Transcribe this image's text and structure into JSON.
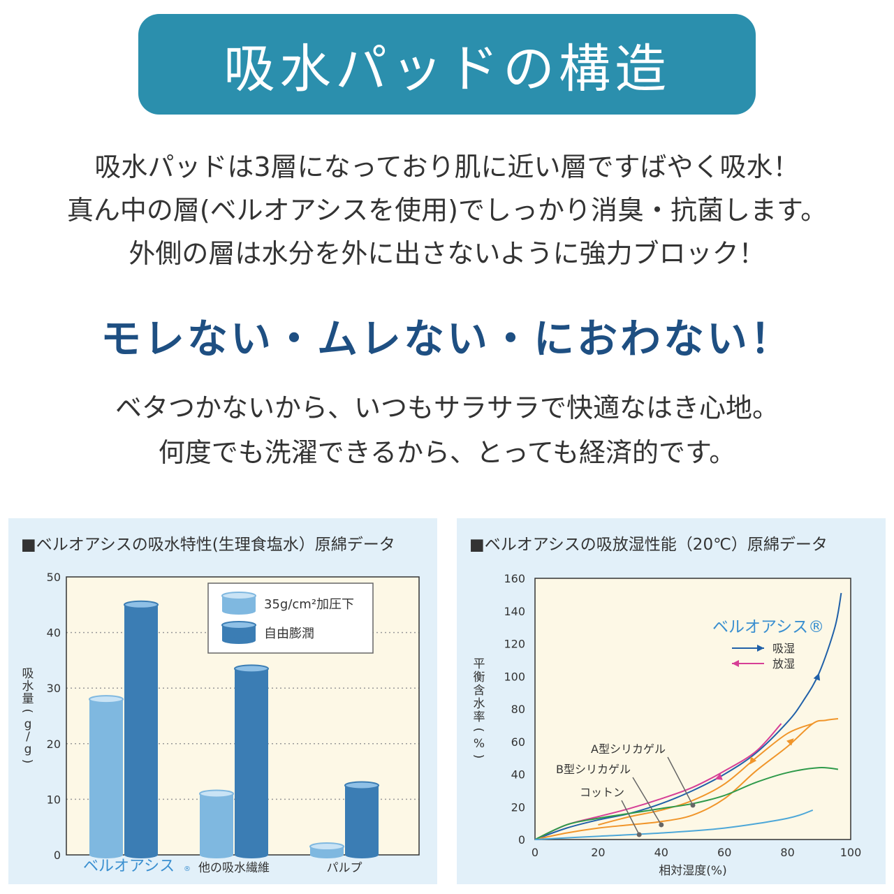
{
  "header": {
    "title": "吸水パッドの構造"
  },
  "intro": {
    "lines": [
      "吸水パッドは3層になっており肌に近い層ですばやく吸水！",
      "真ん中の層(ベルオアシスを使用)でしっかり消臭・抗菌します。",
      "外側の層は水分を外に出さないように強力ブロック！"
    ]
  },
  "slogan": "モレない・ムレない・におわない！",
  "benefit": {
    "lines": [
      "ベタつかないから、いつもサラサラで快適なはき心地。",
      "何度でも洗濯できるから、とっても経済的です。"
    ]
  },
  "colors": {
    "banner": "#2b8fad",
    "slogan": "#1e4f82",
    "panel_bg": "#e2f0f9",
    "plot_bg": "#fdf8e6",
    "bar_light": "#7fb8e0",
    "bar_dark": "#3b7db4",
    "belloasis": "#3a8fd0",
    "absorb": "#2060a8",
    "release": "#d63f96",
    "a_gel": "#f0952a",
    "b_gel": "#2e9a4a",
    "cotton": "#4da7d8"
  },
  "chart_data": [
    {
      "type": "bar",
      "title": "■ベルオアシスの吸水特性(生理食塩水）原綿データ",
      "categories": [
        "ベルオアシス",
        "他の吸水繊維",
        "パルプ"
      ],
      "category_marks": [
        "®",
        "",
        ""
      ],
      "series": [
        {
          "name": "35g/cm²加圧下",
          "values": [
            28,
            11,
            1.5
          ]
        },
        {
          "name": "自由膨潤",
          "values": [
            45,
            33.5,
            12.5
          ]
        }
      ],
      "ylabel": "吸水量(g/g)",
      "ylim": [
        0,
        50
      ],
      "yticks": [
        0,
        10,
        20,
        30,
        40,
        50
      ],
      "grid": true,
      "legend": "top-right"
    },
    {
      "type": "line",
      "title": "■ベルオアシスの吸放湿性能（20℃）原綿データ",
      "xlabel": "相対湿度(%)",
      "ylabel": "平衡含水率(%)",
      "xlim": [
        0,
        100
      ],
      "ylim": [
        0,
        160
      ],
      "xticks": [
        0,
        20,
        40,
        60,
        80,
        100
      ],
      "yticks": [
        0,
        20,
        40,
        60,
        80,
        100,
        120,
        140,
        160
      ],
      "legend_title": "ベルオアシス®",
      "curve_labels": [
        "A型シリカゲル",
        "B型シリカゲル",
        "コットン"
      ],
      "series": [
        {
          "name": "吸湿",
          "color_key": "absorb",
          "x": [
            0,
            10,
            20,
            30,
            40,
            50,
            60,
            70,
            80,
            85,
            90,
            95,
            97
          ],
          "y": [
            0,
            7,
            12,
            16,
            22,
            30,
            40,
            53,
            72,
            85,
            102,
            130,
            151
          ]
        },
        {
          "name": "放湿",
          "color_key": "release",
          "x": [
            0,
            10,
            20,
            30,
            40,
            50,
            60,
            70,
            78
          ],
          "y": [
            0,
            9,
            14,
            19,
            25,
            32,
            42,
            54,
            71
          ]
        },
        {
          "name": "A型シリカゲル",
          "color_key": "a_gel",
          "x": [
            0,
            10,
            20,
            30,
            40,
            50,
            60,
            70,
            80,
            88,
            92,
            96
          ],
          "y": [
            0,
            4,
            7,
            9,
            11,
            15,
            25,
            42,
            57,
            71,
            73,
            74
          ]
        },
        {
          "name": "A型シリカゲル (desorption)",
          "color_key": "a_gel",
          "x": [
            88,
            80,
            70,
            60,
            50,
            40,
            30,
            20
          ],
          "y": [
            71,
            65,
            50,
            34,
            24,
            18,
            14,
            9
          ]
        },
        {
          "name": "B型シリカゲル",
          "color_key": "b_gel",
          "x": [
            0,
            10,
            20,
            30,
            40,
            50,
            60,
            70,
            80,
            90,
            96
          ],
          "y": [
            0,
            9,
            13,
            16,
            19,
            22,
            27,
            35,
            41,
            44,
            43
          ]
        },
        {
          "name": "コットン",
          "color_key": "cotton",
          "x": [
            0,
            20,
            40,
            60,
            80,
            88
          ],
          "y": [
            0,
            2,
            4,
            7,
            13,
            18
          ]
        }
      ],
      "grid": false
    }
  ]
}
